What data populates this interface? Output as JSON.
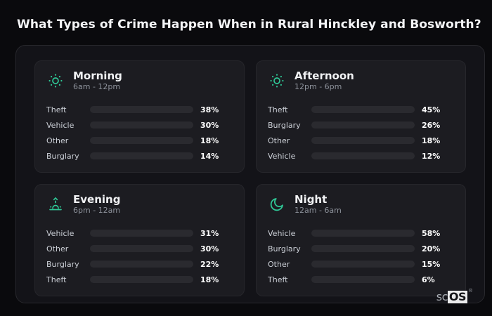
{
  "page": {
    "title": "What Types of Crime Happen When in Rural Hinckley and Bosworth?"
  },
  "brand": {
    "prefix": "sc",
    "core": "OS",
    "reg": "®"
  },
  "accent_icon_color": "#2fc796",
  "category_colors": {
    "Theft": "#a258ec",
    "Vehicle": "#3b82f6",
    "Other": "#6b7b90",
    "Burglary": "#e2761b"
  },
  "panels": [
    {
      "title": "Morning",
      "time_range": "6am - 12pm",
      "icon": "sun-icon",
      "rows": [
        {
          "label": "Theft",
          "value": 38,
          "display": "38%"
        },
        {
          "label": "Vehicle",
          "value": 30,
          "display": "30%"
        },
        {
          "label": "Other",
          "value": 18,
          "display": "18%"
        },
        {
          "label": "Burglary",
          "value": 14,
          "display": "14%"
        }
      ]
    },
    {
      "title": "Afternoon",
      "time_range": "12pm - 6pm",
      "icon": "sun-icon",
      "rows": [
        {
          "label": "Theft",
          "value": 45,
          "display": "45%"
        },
        {
          "label": "Burglary",
          "value": 26,
          "display": "26%"
        },
        {
          "label": "Other",
          "value": 18,
          "display": "18%"
        },
        {
          "label": "Vehicle",
          "value": 12,
          "display": "12%"
        }
      ]
    },
    {
      "title": "Evening",
      "time_range": "6pm - 12am",
      "icon": "sunrise-icon",
      "rows": [
        {
          "label": "Vehicle",
          "value": 31,
          "display": "31%"
        },
        {
          "label": "Other",
          "value": 30,
          "display": "30%"
        },
        {
          "label": "Burglary",
          "value": 22,
          "display": "22%"
        },
        {
          "label": "Theft",
          "value": 18,
          "display": "18%"
        }
      ]
    },
    {
      "title": "Night",
      "time_range": "12am - 6am",
      "icon": "moon-icon",
      "rows": [
        {
          "label": "Vehicle",
          "value": 58,
          "display": "58%"
        },
        {
          "label": "Burglary",
          "value": 20,
          "display": "20%"
        },
        {
          "label": "Other",
          "value": 15,
          "display": "15%"
        },
        {
          "label": "Theft",
          "value": 6,
          "display": "6%"
        }
      ]
    }
  ],
  "chart_data": [
    {
      "type": "bar",
      "orientation": "horizontal",
      "title": "Morning",
      "subtitle": "6am - 12pm",
      "unit": "%",
      "xlim": [
        0,
        100
      ],
      "categories": [
        "Theft",
        "Vehicle",
        "Other",
        "Burglary"
      ],
      "values": [
        38,
        30,
        18,
        14
      ]
    },
    {
      "type": "bar",
      "orientation": "horizontal",
      "title": "Afternoon",
      "subtitle": "12pm - 6pm",
      "unit": "%",
      "xlim": [
        0,
        100
      ],
      "categories": [
        "Theft",
        "Burglary",
        "Other",
        "Vehicle"
      ],
      "values": [
        45,
        26,
        18,
        12
      ]
    },
    {
      "type": "bar",
      "orientation": "horizontal",
      "title": "Evening",
      "subtitle": "6pm - 12am",
      "unit": "%",
      "xlim": [
        0,
        100
      ],
      "categories": [
        "Vehicle",
        "Other",
        "Burglary",
        "Theft"
      ],
      "values": [
        31,
        30,
        22,
        18
      ]
    },
    {
      "type": "bar",
      "orientation": "horizontal",
      "title": "Night",
      "subtitle": "12am - 6am",
      "unit": "%",
      "xlim": [
        0,
        100
      ],
      "categories": [
        "Vehicle",
        "Burglary",
        "Other",
        "Theft"
      ],
      "values": [
        58,
        20,
        15,
        6
      ]
    }
  ]
}
